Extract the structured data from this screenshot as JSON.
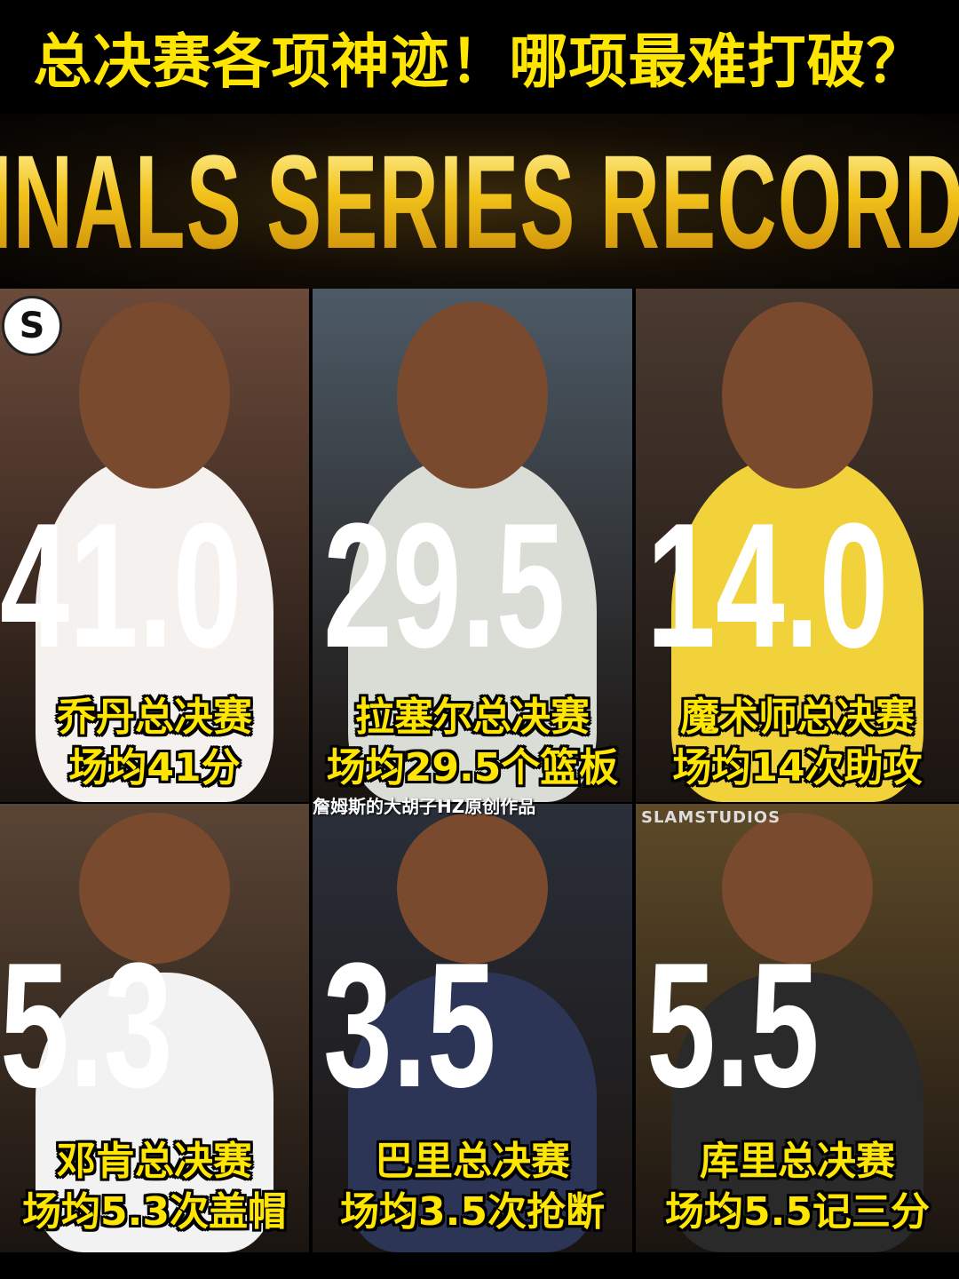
{
  "title": "总决赛各项神迹！哪项最难打破？",
  "banner": "FINALS SERIES RECORDS",
  "watermark": "詹姆斯的大胡子HZ原创作品",
  "studio_logo": "SLAMSTUDIOS",
  "colors": {
    "caption": "#ffe600",
    "banner_gold": "#f2c21a",
    "stat": "#ffffff"
  },
  "panels": [
    {
      "player": "Michael Jordan",
      "stat": "41.0",
      "line1": "乔丹总决赛",
      "line2": "场均41分",
      "bg": "#6b4a3a",
      "jersey": "#f4f1ee"
    },
    {
      "player": "Bill Russell",
      "stat": "29.5",
      "line1": "拉塞尔总决赛",
      "line2": "场均29.5个篮板",
      "bg": "#4d5a66",
      "jersey": "#d9ddd6"
    },
    {
      "player": "Magic Johnson",
      "stat": "14.0",
      "line1": "魔术师总决赛",
      "line2": "场均14次助攻",
      "bg": "#4a3a30",
      "jersey": "#f2d23a"
    },
    {
      "player": "Tim Duncan",
      "stat": "5.3",
      "line1": "邓肯总决赛",
      "line2": "场均5.3次盖帽",
      "bg": "#5a4535",
      "jersey": "#f2f2f2"
    },
    {
      "player": "Rick Barry",
      "stat": "3.5",
      "line1": "巴里总决赛",
      "line2": "场均3.5次抢断",
      "bg": "#2a2f3a",
      "jersey": "#2c3556"
    },
    {
      "player": "Stephen Curry",
      "stat": "5.5",
      "line1": "库里总决赛",
      "line2": "场均5.5记三分",
      "bg": "#5e4a28",
      "jersey": "#2a2a2a"
    }
  ]
}
